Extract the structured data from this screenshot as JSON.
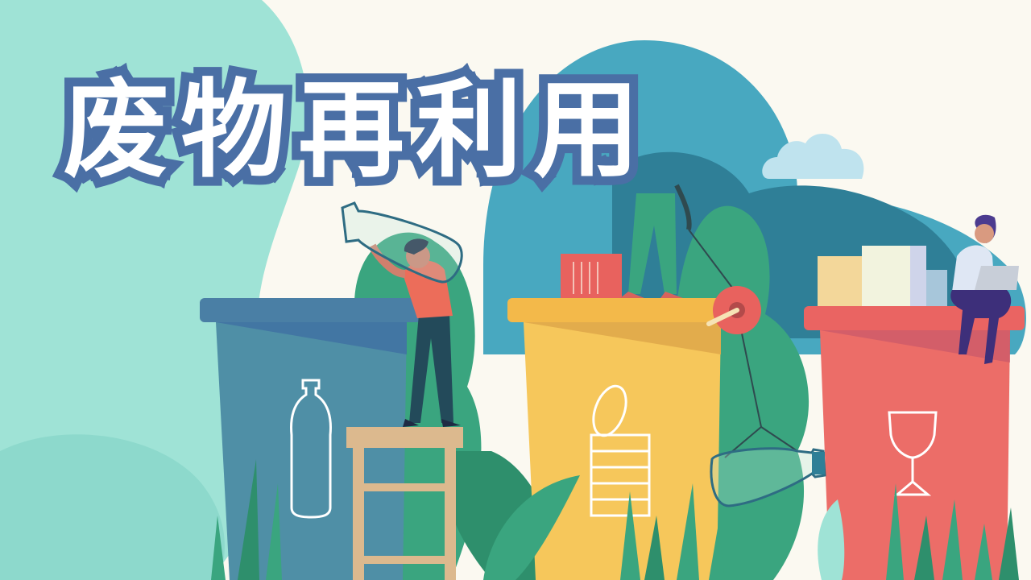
{
  "title": "废物再利用",
  "colors": {
    "background": "#fbf9f1",
    "mint": "#9fe3d6",
    "title_outline": "#4a6fa5",
    "blue_bin": "#4f8fa6",
    "yellow_bin": "#f6c75b",
    "red_bin": "#ec6d68",
    "leaf_green": "#3aa57f"
  },
  "icons": [
    "plastic-bottle-icon",
    "tin-can-icon",
    "wine-glass-icon"
  ]
}
